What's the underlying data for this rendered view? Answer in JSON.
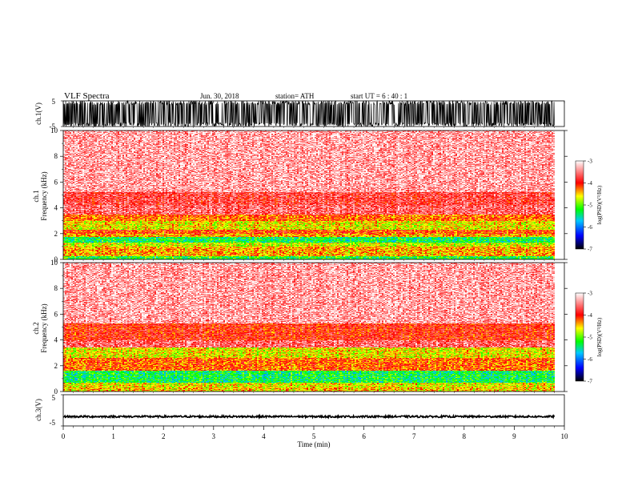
{
  "header": {
    "title": "VLF  Spectra",
    "date": "Jun. 30, 2018",
    "station": "station= ATH",
    "start": "start  UT  =    6  : 40 : 1"
  },
  "chart_data": [
    {
      "type": "line",
      "panel": "ch1-waveform",
      "ylabel": "ch.1(V)",
      "ylim": [
        -5,
        5
      ],
      "yticks": [
        "5",
        "-5"
      ],
      "xlim": [
        0,
        10
      ],
      "signal": "full-scale noise, saturating ±5 V"
    },
    {
      "type": "heatmap",
      "panel": "ch1-spectrogram",
      "ylabel": "ch.1\nFrequency  (kHz)",
      "ylabel_lines": [
        "ch.1",
        "Frequency  (kHz)"
      ],
      "ylim": [
        0,
        10
      ],
      "yticks": [
        "0",
        "2",
        "4",
        "6",
        "8",
        "10"
      ],
      "xlim": [
        0,
        10
      ],
      "colorbar": {
        "label": "log(PSD)(V²/Hz)",
        "ticks": [
          "-3",
          "-4",
          "-5",
          "-6",
          "-7"
        ],
        "range": [
          -7,
          -3
        ]
      },
      "bands_khz": [
        {
          "from": 0.0,
          "to": 0.25,
          "level": -5.2
        },
        {
          "from": 0.25,
          "to": 1.0,
          "level": -4.4
        },
        {
          "from": 1.0,
          "to": 1.3,
          "level": -4.7
        },
        {
          "from": 1.3,
          "to": 1.75,
          "level": -5.3
        },
        {
          "from": 1.75,
          "to": 2.0,
          "level": -4.4
        },
        {
          "from": 2.0,
          "to": 2.3,
          "level": -4.1
        },
        {
          "from": 2.3,
          "to": 3.0,
          "level": -4.6
        },
        {
          "from": 3.0,
          "to": 3.5,
          "level": -4.2
        },
        {
          "from": 3.5,
          "to": 4.2,
          "level": -3.6
        },
        {
          "from": 4.2,
          "to": 5.2,
          "level": -3.75
        },
        {
          "from": 5.2,
          "to": 10.0,
          "level": -3.35
        }
      ]
    },
    {
      "type": "heatmap",
      "panel": "ch2-spectrogram",
      "ylabel_lines": [
        "ch.2",
        "Frequency  (kHz)"
      ],
      "ylim": [
        0,
        10
      ],
      "yticks": [
        "0",
        "2",
        "4",
        "6",
        "8",
        "10"
      ],
      "xlim": [
        0,
        10
      ],
      "colorbar": {
        "label": "log(PSD)(V²/Hz)",
        "ticks": [
          "-3",
          "-4",
          "-5",
          "-6",
          "-7"
        ],
        "range": [
          -7,
          -3
        ]
      },
      "bands_khz": [
        {
          "from": 0.0,
          "to": 0.3,
          "level": -4.5
        },
        {
          "from": 0.3,
          "to": 0.7,
          "level": -4.6
        },
        {
          "from": 0.7,
          "to": 1.6,
          "level": -5.3
        },
        {
          "from": 1.6,
          "to": 2.0,
          "level": -4.2
        },
        {
          "from": 2.0,
          "to": 2.6,
          "level": -4.2
        },
        {
          "from": 2.6,
          "to": 3.4,
          "level": -4.6
        },
        {
          "from": 3.4,
          "to": 4.0,
          "level": -3.6
        },
        {
          "from": 4.0,
          "to": 5.3,
          "level": -3.95
        },
        {
          "from": 5.3,
          "to": 10.0,
          "level": -3.35
        }
      ]
    },
    {
      "type": "line",
      "panel": "ch3-waveform",
      "ylabel": "ch.3(V)",
      "ylim": [
        -5,
        5
      ],
      "yticks": [
        "5",
        "-5"
      ],
      "xlim": [
        0,
        10
      ],
      "signal": "low-amplitude noise around -2 V"
    }
  ],
  "xaxis": {
    "label": "Time  (min)",
    "ticks": [
      "0",
      "1",
      "2",
      "3",
      "4",
      "5",
      "6",
      "7",
      "8",
      "9",
      "10"
    ],
    "data_end_min": 9.8
  },
  "colors": {
    "cmap": [
      "#000000",
      "#0000ff",
      "#00c8ff",
      "#00ff00",
      "#ffff00",
      "#ff0000",
      "#ffffff"
    ]
  }
}
